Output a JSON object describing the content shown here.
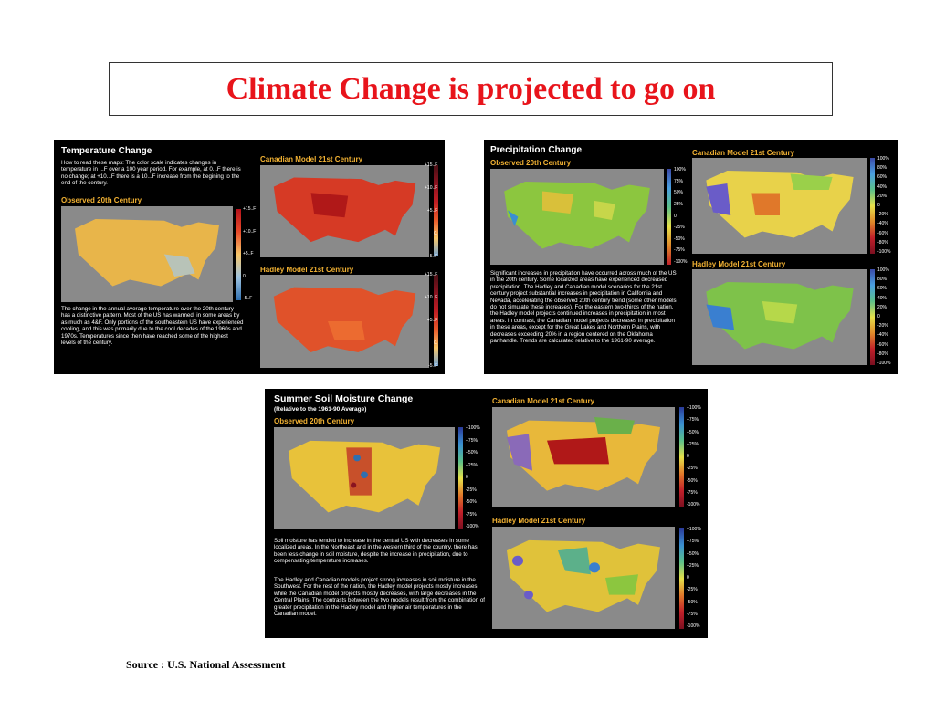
{
  "slide": {
    "title": "Climate Change is projected to go on",
    "source": "Source : U.S. National Assessment"
  },
  "colors": {
    "title": "#e8141b",
    "panel_bg": "#000000",
    "subheading": "#f2b233",
    "map_bg": "#8a8a8a"
  },
  "temperature": {
    "title": "Temperature Change",
    "intro": "How to read these maps: The color scale indicates changes in temperature in ...F over a 100 year period.  For example, at 0...F there is no change; at +10...F  there is a 10...F increase from the begining to the end of the century.",
    "observed_label": "Observed 20th Century",
    "canadian_label": "Canadian Model 21st Century",
    "hadley_label": "Hadley Model 21st Century",
    "body": "The change in the annual average temperature over the 20th century has a distinctive pattern.  Most of the US has warmed, in some areas by as much as 4&F.  Only portions of the southeastern US have experienced cooling, and this was primarily due to the cool decades of the 1960s and 1970s.  Temperatures since then have reached some of the highest levels of the century.",
    "obs_scale": [
      "+15..F",
      "+10..F",
      "+5..F",
      "0.",
      "-5..F"
    ],
    "model_scale": [
      "+15..F",
      "+10..F",
      "+5..F",
      "0.",
      "-5..F"
    ]
  },
  "precipitation": {
    "title": "Precipitation Change",
    "observed_label": "Observed 20th Century",
    "canadian_label": "Canadian Model 21st Century",
    "hadley_label": "Hadley Model 21st Century",
    "body": "Significant increases in precipitation have occurred across much of the US in the 20th century.  Some localized areas have experienced decreased precipitation.  The Hadley and Canadian model scenarios for the 21st century project substantial increases in precipitation in California and Nevada, accelerating the observed 20th century trend (some other models do not simulate these increases).  For the eastern two-thirds of the nation, the Hadley model projects continued increases in precipitation in most areas.  In contrast, the Canadian model projects decreases in precipitation in these areas, except for the Great Lakes and Northern Plains, with decreases exceeding 20% in a region centered on the Oklahoma panhandle. Trends are calculated relative to the 1961-90 average.",
    "obs_scale": [
      "100%",
      "75%",
      "50%",
      "25%",
      "0",
      "-25%",
      "-50%",
      "-75%",
      "-100%"
    ],
    "model_scale": [
      "100%",
      "80%",
      "60%",
      "40%",
      "20%",
      "0",
      "-20%",
      "-40%",
      "-60%",
      "-80%",
      "-100%"
    ]
  },
  "soil": {
    "title": "Summer Soil Moisture Change",
    "subtitle": "(Relative to the 1961-90 Average)",
    "observed_label": "Observed 20th Century",
    "canadian_label": "Canadian Model 21st Century",
    "hadley_label": "Hadley Model 21st Century",
    "body1": "Soil moisture has tended to increase in the central US with decreases in some localized areas.  In the Northeast and in the western third of the country, there has been less change in soil moisture, despite the increase in precipitation, due to compensating temperature increases.",
    "body2": "The Hadley and Canadian models project strong increases in soil moisture in the Southwest.  For the rest of the nation, the Hadley model projects mostly increases while the Canadian model projects mostly decreases, with large decreases in the Central Plains.  The contrasts between the two models result from the combination of greater precipitation in the Hadley model and higher air temperatures in the Canadian model.",
    "scale": [
      "+100%",
      "+75%",
      "+50%",
      "+25%",
      "0",
      "-25%",
      "-50%",
      "-75%",
      "-100%"
    ]
  }
}
